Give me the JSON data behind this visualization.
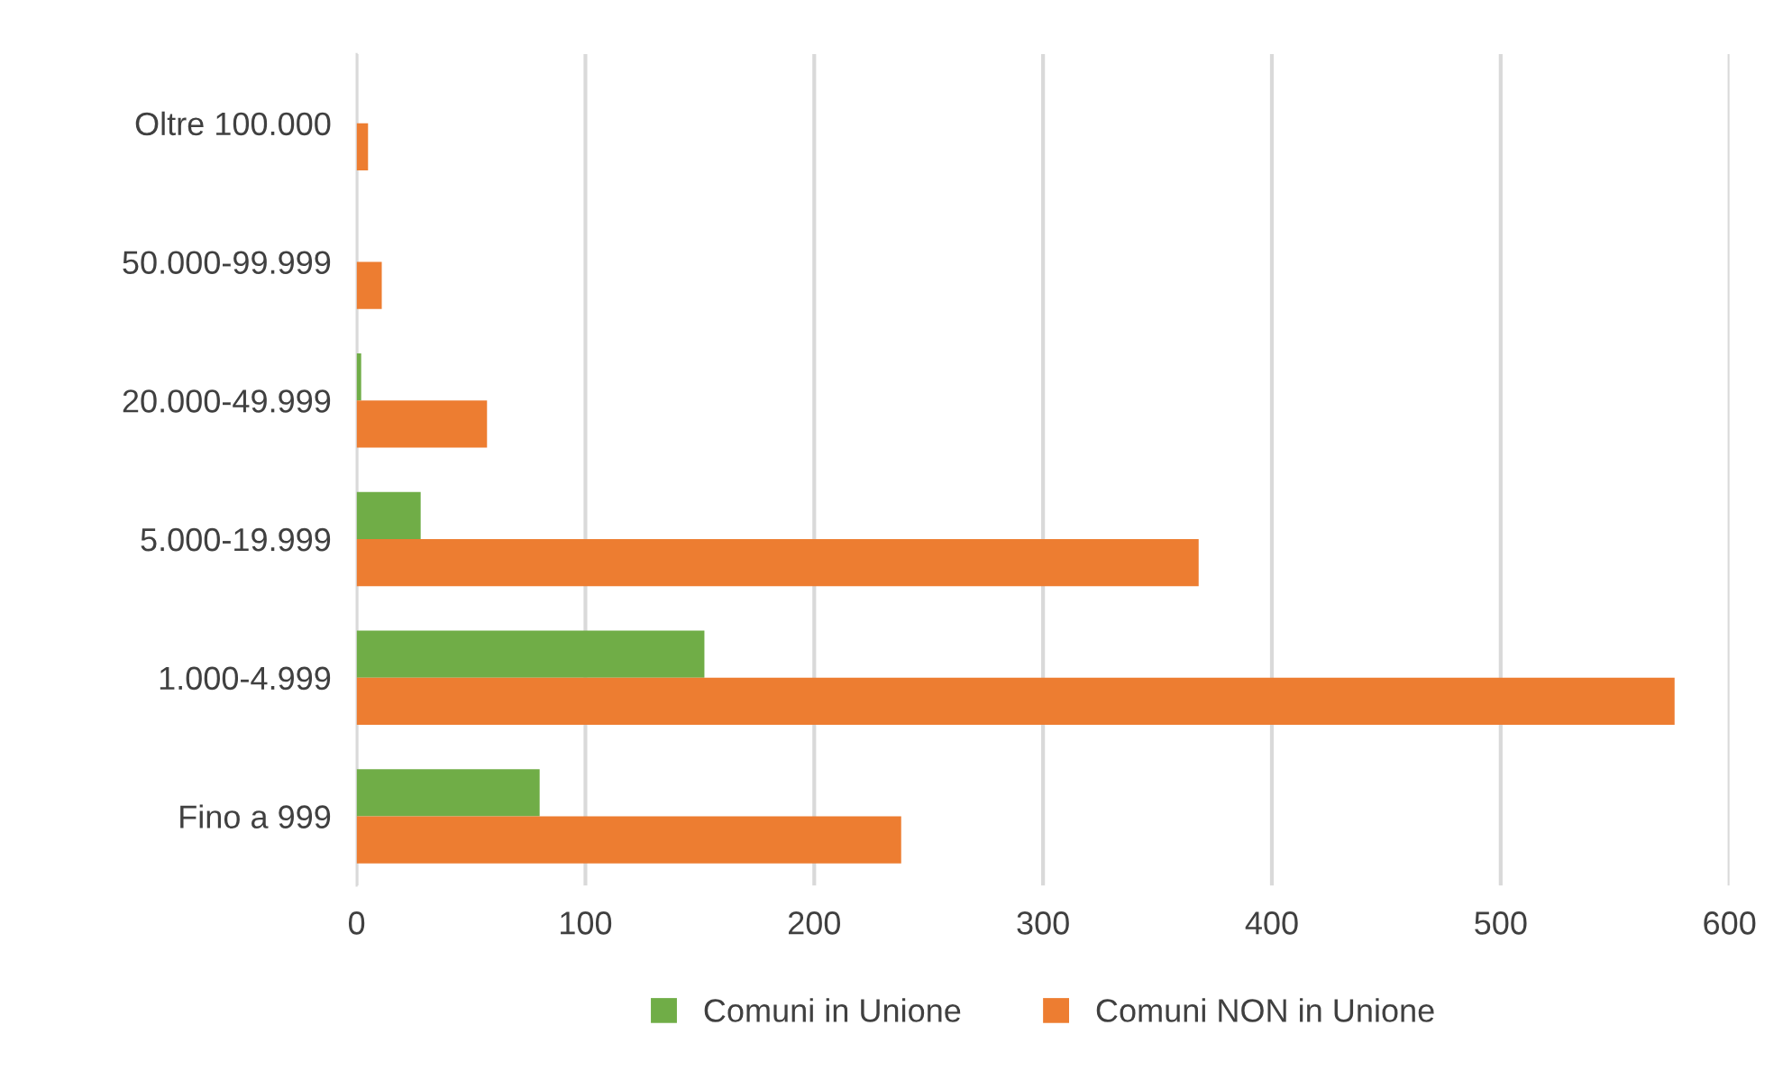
{
  "chart_data": {
    "type": "bar",
    "orientation": "horizontal",
    "categories": [
      "Oltre 100.000",
      "50.000-99.999",
      "20.000-49.999",
      "5.000-19.999",
      "1.000-4.999",
      "Fino a 999"
    ],
    "series": [
      {
        "name": "Comuni in Unione",
        "color": "#70ad47",
        "values": [
          0,
          0,
          2,
          28,
          152,
          80
        ]
      },
      {
        "name": "Comuni NON in Unione",
        "color": "#ed7d31",
        "values": [
          5,
          11,
          57,
          368,
          576,
          238
        ]
      }
    ],
    "xlim": [
      0,
      600
    ],
    "xticks": [
      0,
      100,
      200,
      300,
      400,
      500,
      600
    ],
    "grid": "x",
    "legend": "bottom"
  }
}
